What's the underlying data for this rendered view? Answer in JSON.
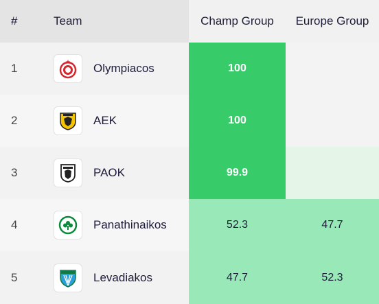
{
  "headers": {
    "rank": "#",
    "team": "Team",
    "champ": "Champ Group",
    "europe": "Europe Group"
  },
  "colors": {
    "strong": "#37cb6a",
    "mid": "#99e9b8",
    "light": "#e5f5e8",
    "empty": "#f3f3f3"
  },
  "rows": [
    {
      "rank": "1",
      "team": "Olympiacos",
      "logo": "olympiacos-logo-icon",
      "champ": "100",
      "europe": "",
      "champ_level": "strong",
      "europe_level": "empty"
    },
    {
      "rank": "2",
      "team": "AEK",
      "logo": "aek-logo-icon",
      "champ": "100",
      "europe": "",
      "champ_level": "strong",
      "europe_level": "empty"
    },
    {
      "rank": "3",
      "team": "PAOK",
      "logo": "paok-logo-icon",
      "champ": "99.9",
      "europe": "",
      "champ_level": "strong",
      "europe_level": "light"
    },
    {
      "rank": "4",
      "team": "Panathinaikos",
      "logo": "panathinaikos-logo-icon",
      "champ": "52.3",
      "europe": "47.7",
      "champ_level": "mid",
      "europe_level": "mid"
    },
    {
      "rank": "5",
      "team": "Levadiakos",
      "logo": "levadiakos-logo-icon",
      "champ": "47.7",
      "europe": "52.3",
      "champ_level": "mid",
      "europe_level": "mid"
    }
  ]
}
